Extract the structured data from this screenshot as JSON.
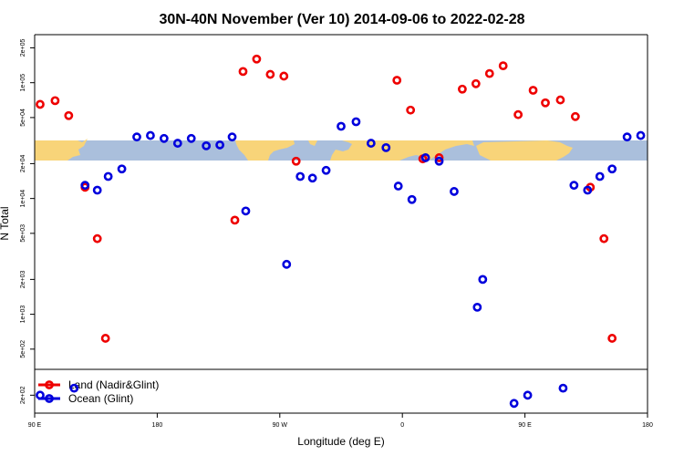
{
  "chart_data": {
    "type": "scatter",
    "title": "30N-40N November (Ver 10)   2014-09-06 to 2022-02-28",
    "xlabel": "Longitude (deg E)",
    "ylabel": "N Total",
    "x_ticks": [
      {
        "value": 90,
        "label": "90 E"
      },
      {
        "value": 180,
        "label": "180"
      },
      {
        "value": 270,
        "label": "90 W"
      },
      {
        "value": 360,
        "label": "0"
      },
      {
        "value": 450,
        "label": "90 E"
      },
      {
        "value": 540,
        "label": "180"
      }
    ],
    "xlim": [
      90,
      540
    ],
    "y_scale": "log",
    "ylim": [
      140,
      260000
    ],
    "y_ticks": [
      {
        "value": 200,
        "label": "2e+02"
      },
      {
        "value": 500,
        "label": "5e+02"
      },
      {
        "value": 1000,
        "label": "1e+03"
      },
      {
        "value": 2000,
        "label": "2e+03"
      },
      {
        "value": 5000,
        "label": "5e+03"
      },
      {
        "value": 10000,
        "label": "1e+04"
      },
      {
        "value": 20000,
        "label": "2e+04"
      },
      {
        "value": 50000,
        "label": "5e+04"
      },
      {
        "value": 100000,
        "label": "1e+05"
      },
      {
        "value": 200000,
        "label": "2e+05"
      }
    ],
    "legend_position": "bottom-left",
    "series": [
      {
        "name": "Land (Nadir&Glint)",
        "color": "#ee0000",
        "points": [
          [
            94,
            65000
          ],
          [
            105,
            70000
          ],
          [
            115,
            52000
          ],
          [
            127,
            12500
          ],
          [
            136,
            4500
          ],
          [
            142,
            620
          ],
          [
            237,
            6500
          ],
          [
            243,
            125000
          ],
          [
            253,
            160000
          ],
          [
            263,
            118000
          ],
          [
            273,
            114000
          ],
          [
            282,
            21000
          ],
          [
            356,
            105000
          ],
          [
            366,
            58000
          ],
          [
            375,
            22000
          ],
          [
            387,
            22500
          ],
          [
            404,
            88000
          ],
          [
            414,
            98000
          ],
          [
            424,
            120000
          ],
          [
            434,
            140000
          ],
          [
            445,
            53000
          ],
          [
            456,
            86000
          ],
          [
            465,
            67000
          ],
          [
            476,
            71000
          ],
          [
            487,
            51000
          ],
          [
            498,
            12500
          ],
          [
            508,
            4500
          ],
          [
            514,
            620
          ]
        ]
      },
      {
        "name": "Ocean (Glint)",
        "color": "#0000dd",
        "points": [
          [
            94,
            200
          ],
          [
            119,
            230
          ],
          [
            127,
            13000
          ],
          [
            136,
            11800
          ],
          [
            144,
            15500
          ],
          [
            154,
            18000
          ],
          [
            165,
            34000
          ],
          [
            175,
            35000
          ],
          [
            185,
            33000
          ],
          [
            195,
            30000
          ],
          [
            205,
            33000
          ],
          [
            216,
            28500
          ],
          [
            226,
            29000
          ],
          [
            235,
            34000
          ],
          [
            245,
            7800
          ],
          [
            275,
            2700
          ],
          [
            285,
            15500
          ],
          [
            294,
            15000
          ],
          [
            304,
            17500
          ],
          [
            315,
            42000
          ],
          [
            326,
            46000
          ],
          [
            337,
            30000
          ],
          [
            348,
            27500
          ],
          [
            357,
            12800
          ],
          [
            367,
            9800
          ],
          [
            377,
            22500
          ],
          [
            387,
            21000
          ],
          [
            398,
            11500
          ],
          [
            415,
            1150
          ],
          [
            419,
            2000
          ],
          [
            442,
            170
          ],
          [
            452,
            200
          ],
          [
            478,
            230
          ],
          [
            486,
            13000
          ],
          [
            496,
            11800
          ],
          [
            505,
            15500
          ],
          [
            514,
            18000
          ],
          [
            525,
            34000
          ],
          [
            535,
            35000
          ]
        ]
      }
    ]
  }
}
